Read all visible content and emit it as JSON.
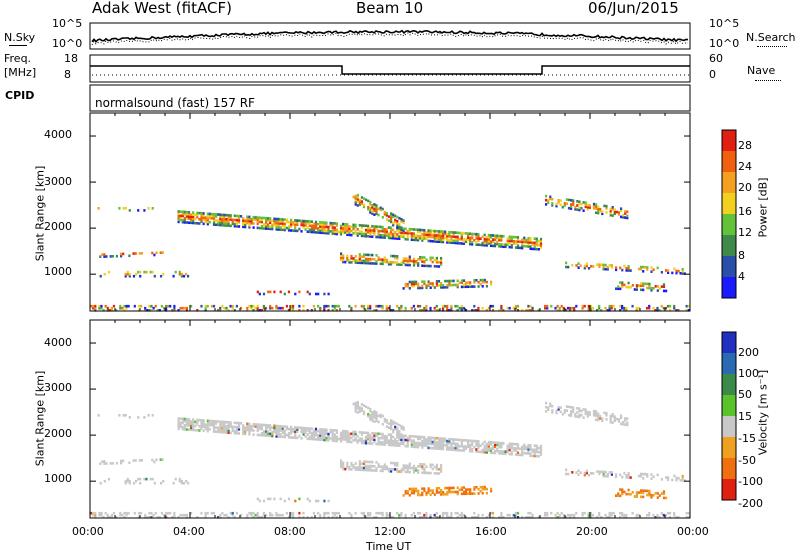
{
  "header": {
    "title": "Adak West (fitACF)",
    "beam": "Beam 10",
    "date": "06/Jun/2015"
  },
  "nsky_panel": {
    "left_label": "N.Sky",
    "left_ticks": [
      "10^5",
      "10^0"
    ],
    "right_ticks": [
      "10^5",
      "10^0"
    ],
    "right_label": "N.Search"
  },
  "freq_panel": {
    "left_label_line1": "Freq.",
    "left_label_line2": "[MHz]",
    "left_ticks": [
      "18",
      "8"
    ],
    "right_ticks": [
      "60",
      "0"
    ],
    "right_label": "Nave"
  },
  "cpid_panel": {
    "label": "CPID",
    "value": "normalsound (fast) 157 RF"
  },
  "chart_data": [
    {
      "type": "heatmap",
      "name": "power",
      "ylabel": "Slant Range [km]",
      "yticks": [
        "1000",
        "2000",
        "3000",
        "4000"
      ],
      "colorbar_label": "Power [dB]",
      "colorbar_ticks": [
        "4",
        "8",
        "12",
        "16",
        "20",
        "24",
        "28"
      ],
      "colors": [
        "#1a1aff",
        "#2a4fa8",
        "#3f8a4a",
        "#62c23a",
        "#f0d020",
        "#f4a020",
        "#f06010",
        "#e02010"
      ]
    },
    {
      "type": "heatmap",
      "name": "velocity",
      "ylabel": "Slant Range [km]",
      "yticks": [
        "1000",
        "2000",
        "3000",
        "4000"
      ],
      "colorbar_label": "Velocity [m s⁻¹]",
      "colorbar_ticks": [
        "200",
        "100",
        "50",
        "15",
        "-15",
        "-50",
        "-100",
        "-200"
      ],
      "colors": [
        "#2030c0",
        "#2a6ab0",
        "#3a8a4a",
        "#5ac22a",
        "#c8c8c8",
        "#f0a020",
        "#f07010",
        "#e02010"
      ]
    }
  ],
  "time_axis": {
    "ticks": [
      "00:00",
      "04:00",
      "08:00",
      "12:00",
      "16:00",
      "20:00",
      "00:00"
    ],
    "label": "Time UT"
  }
}
